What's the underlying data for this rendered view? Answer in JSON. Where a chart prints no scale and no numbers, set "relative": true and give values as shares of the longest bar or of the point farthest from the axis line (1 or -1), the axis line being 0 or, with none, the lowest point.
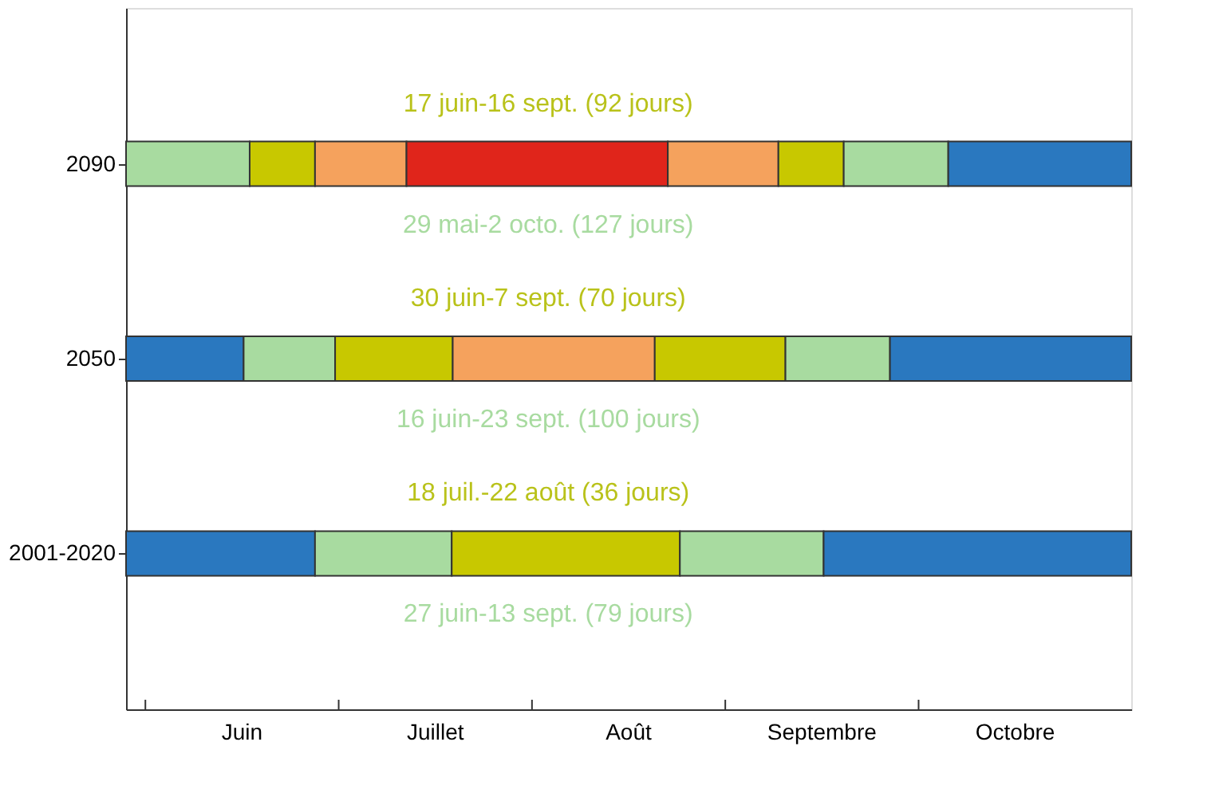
{
  "chart_data": {
    "type": "bar",
    "orientation": "horizontal",
    "stacked": true,
    "relative": true,
    "categories": [
      "2090",
      "2050",
      "2001-2020"
    ],
    "series": [
      {
        "colors": [
          "#a8dba0",
          "#2a78bf",
          "#2a78bf"
        ],
        "values": [
          0.123,
          0.117,
          0.188
        ]
      },
      {
        "colors": [
          "#c8c800",
          "#a8dba0",
          "#a8dba0"
        ],
        "values": [
          0.065,
          0.091,
          0.136
        ]
      },
      {
        "colors": [
          "#f5a25d",
          "#c8c800",
          "#c8c800"
        ],
        "values": [
          0.091,
          0.117,
          0.227
        ]
      },
      {
        "colors": [
          "#e0251b",
          "#f5a25d",
          "#a8dba0"
        ],
        "values": [
          0.26,
          0.201,
          0.143
        ]
      },
      {
        "colors": [
          "#f5a25d",
          "#c8c800",
          "#2a78bf"
        ],
        "values": [
          0.11,
          0.13,
          0.306
        ]
      },
      {
        "colors": [
          "#c8c800",
          "#a8dba0",
          null
        ],
        "values": [
          0.065,
          0.104,
          null
        ]
      },
      {
        "colors": [
          "#a8dba0",
          "#2a78bf",
          null
        ],
        "values": [
          0.104,
          0.24,
          null
        ]
      },
      {
        "colors": [
          "#2a78bf",
          null,
          null
        ],
        "values": [
          0.182,
          null,
          null
        ]
      }
    ],
    "annotations": [
      "17 juin-16 sept. (92 jours)",
      "29 mai-2 octo. (127 jours)",
      "30 juin-7 sept. (70 jours)",
      "16 juin-23 sept. (100 jours)",
      "18 juil.-22 août (36 jours)",
      "27 juin-13 sept. (79 jours)",
      "Juin",
      "Juillet",
      "Août",
      "Septembre",
      "Octobre"
    ],
    "grid": false,
    "legend": false
  }
}
